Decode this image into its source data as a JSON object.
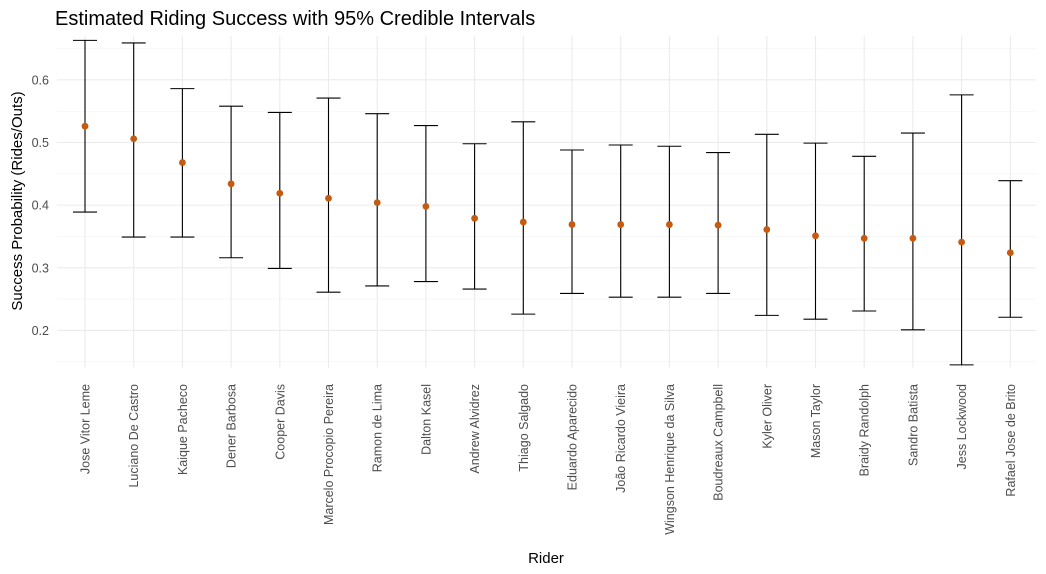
{
  "chart_data": {
    "type": "errorbar",
    "title": "Estimated Riding Success with 95% Credible Intervals",
    "xlabel": "Rider",
    "ylabel": "Success Probability (Rides/Outs)",
    "ylim": [
      0.14,
      0.67
    ],
    "yticks": [
      0.2,
      0.3,
      0.4,
      0.5,
      0.6
    ],
    "grid": true,
    "point_color": "#C55A11",
    "categories": [
      "Jose Vitor Leme",
      "Luciano De Castro",
      "Kaique Pacheco",
      "Dener Barbosa",
      "Cooper Davis",
      "Marcelo Procopio Pereira",
      "Ramon de Lima",
      "Dalton Kasel",
      "Andrew Alvidrez",
      "Thiago Salgado",
      "Eduardo Aparecido",
      "João Ricardo Vieira",
      "Wingson Henrique da Silva",
      "Boudreaux Campbell",
      "Kyler Oliver",
      "Mason Taylor",
      "Braidy Randolph",
      "Sandro Batista",
      "Jess Lockwood",
      "Rafael Jose de Brito"
    ],
    "estimate": [
      0.526,
      0.506,
      0.468,
      0.434,
      0.419,
      0.411,
      0.404,
      0.398,
      0.379,
      0.373,
      0.369,
      0.369,
      0.369,
      0.368,
      0.361,
      0.351,
      0.347,
      0.347,
      0.341,
      0.324
    ],
    "lower": [
      0.389,
      0.349,
      0.349,
      0.316,
      0.299,
      0.261,
      0.271,
      0.278,
      0.266,
      0.226,
      0.259,
      0.253,
      0.253,
      0.259,
      0.224,
      0.218,
      0.231,
      0.201,
      0.145,
      0.221
    ],
    "upper": [
      0.663,
      0.659,
      0.586,
      0.558,
      0.548,
      0.571,
      0.546,
      0.527,
      0.498,
      0.533,
      0.488,
      0.496,
      0.494,
      0.484,
      0.513,
      0.499,
      0.478,
      0.515,
      0.576,
      0.439
    ]
  }
}
